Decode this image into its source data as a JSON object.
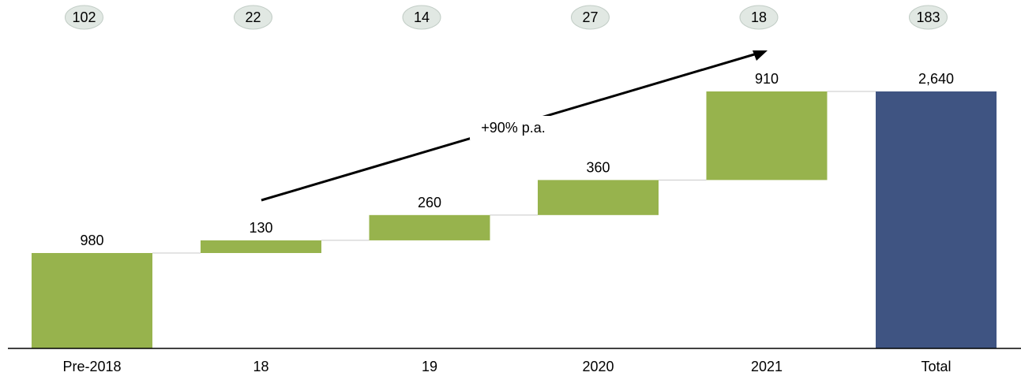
{
  "chart_data": {
    "type": "waterfall",
    "categories": [
      "Pre-2018",
      "18",
      "19",
      "2020",
      "2021",
      "Total"
    ],
    "values": [
      980,
      130,
      260,
      360,
      910,
      2640
    ],
    "value_labels": [
      "980",
      "130",
      "260",
      "360",
      "910",
      "2,640"
    ],
    "is_total": [
      false,
      false,
      false,
      false,
      false,
      true
    ],
    "badges": [
      "102",
      "22",
      "14",
      "27",
      "18",
      "183"
    ],
    "annotation": "+90% p.a.",
    "ylim": [
      0,
      2640
    ],
    "grid": false,
    "colors": {
      "increase": "#97b34d",
      "total": "#3f5482",
      "badge_fill": "#e1e8e3",
      "badge_stroke": "#c2cdc6",
      "connector": "#c8c8c8",
      "axis": "#000000"
    }
  }
}
